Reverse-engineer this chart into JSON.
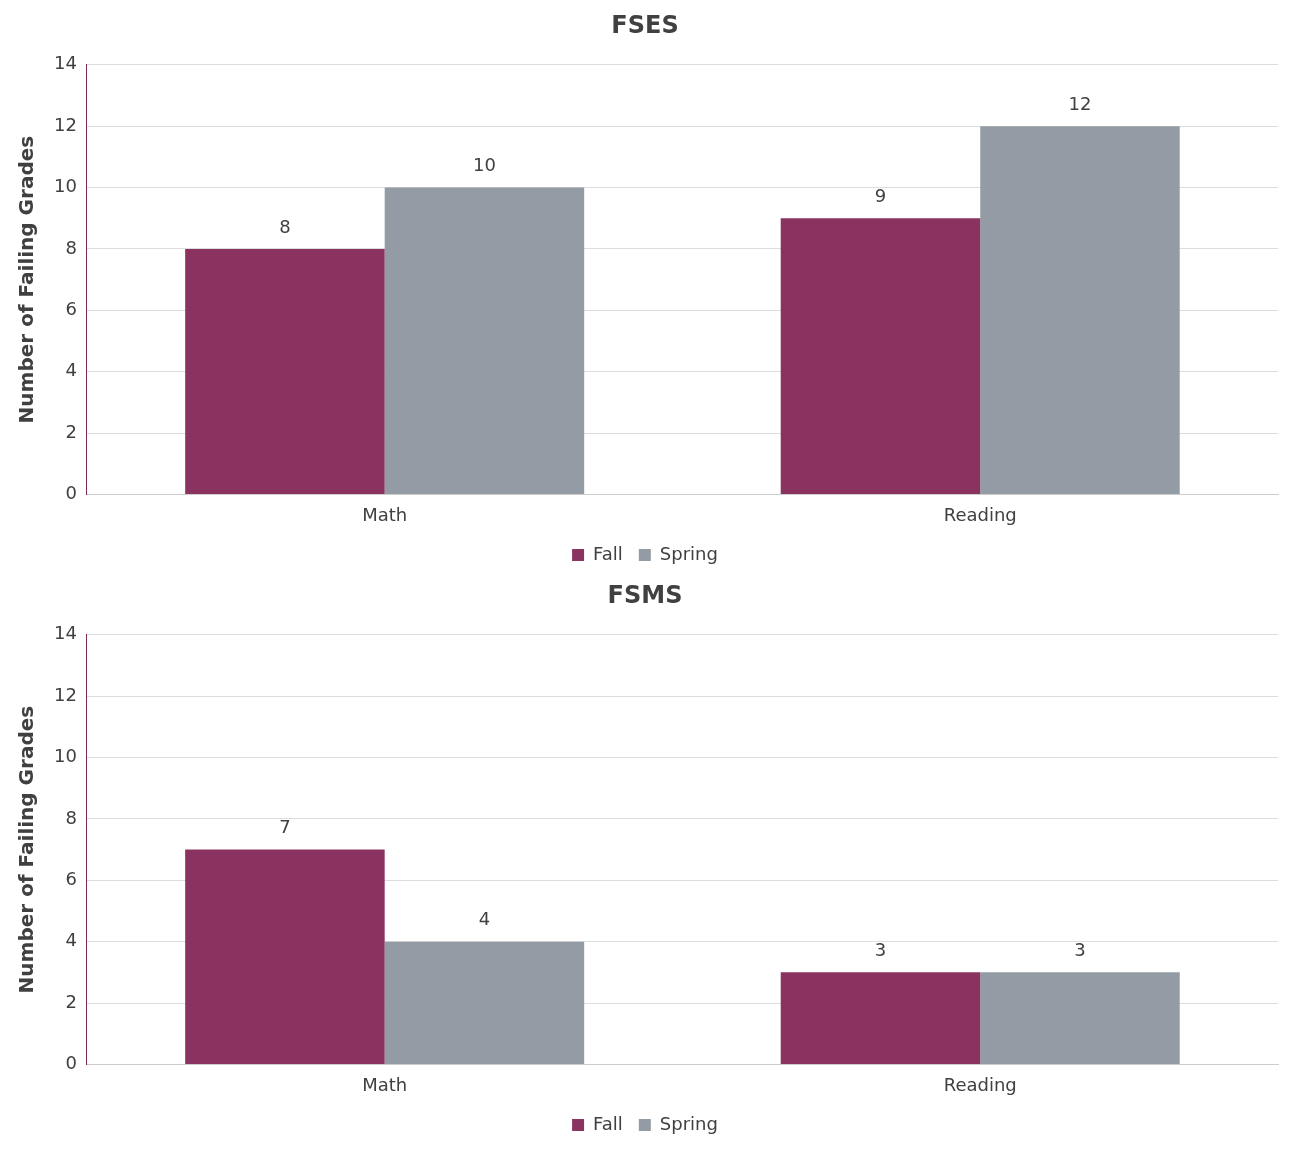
{
  "chart_data": [
    {
      "type": "bar",
      "title": "FSES",
      "ylabel": "Number of Failing Grades",
      "categories": [
        "Math",
        "Reading"
      ],
      "series": [
        {
          "name": "Fall",
          "color": "#8a3360",
          "values": [
            8,
            9
          ]
        },
        {
          "name": "Spring",
          "color": "#939ca5",
          "values": [
            10,
            12
          ]
        }
      ],
      "ylim": [
        0,
        14
      ],
      "yticks": [
        0,
        2,
        4,
        6,
        8,
        10,
        12,
        14
      ],
      "grid": "y",
      "legend": "bottom",
      "data_labels": true
    },
    {
      "type": "bar",
      "title": "FSMS",
      "ylabel": "Number of Failing Grades",
      "categories": [
        "Math",
        "Reading"
      ],
      "series": [
        {
          "name": "Fall",
          "color": "#8a3360",
          "values": [
            7,
            3
          ]
        },
        {
          "name": "Spring",
          "color": "#939ca5",
          "values": [
            4,
            3
          ]
        }
      ],
      "ylim": [
        0,
        14
      ],
      "yticks": [
        0,
        2,
        4,
        6,
        8,
        10,
        12,
        14
      ],
      "grid": "y",
      "legend": "bottom",
      "data_labels": true
    }
  ]
}
